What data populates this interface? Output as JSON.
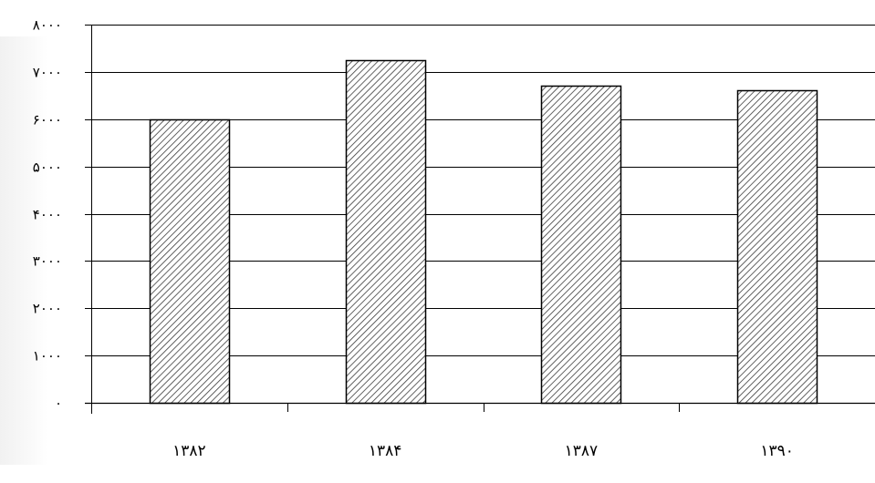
{
  "chart_data": {
    "type": "bar",
    "title": "",
    "xlabel": "",
    "ylabel": "",
    "categories": [
      "۱۳۸۲",
      "۱۳۸۴",
      "۱۳۸۷",
      "۱۳۹۰"
    ],
    "values": [
      6000,
      7250,
      6700,
      6620
    ],
    "ylim": [
      0,
      8000
    ],
    "yticks": [
      0,
      1000,
      2000,
      3000,
      4000,
      5000,
      6000,
      7000,
      8000
    ],
    "ytick_labels": [
      "۰",
      "۱۰۰۰",
      "۲۰۰۰",
      "۳۰۰۰",
      "۴۰۰۰",
      "۵۰۰۰",
      "۶۰۰۰",
      "۷۰۰۰",
      "۸۰۰۰"
    ],
    "grid": true,
    "legend": "none",
    "bar_fill": "diagonal-hatch",
    "colors": {
      "bar_stroke": "#000000",
      "hatch": "#3a3a3a",
      "bar_bg": "#ffffff",
      "grid": "#000000",
      "axis": "#000000"
    }
  }
}
